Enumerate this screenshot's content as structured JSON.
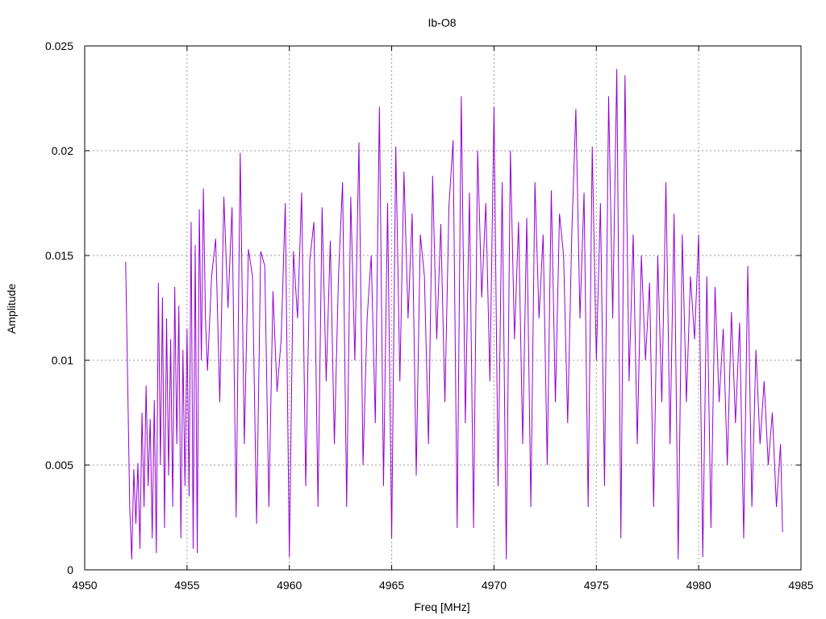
{
  "chart_data": {
    "type": "line",
    "title": "Ib-O8",
    "xlabel": "Freq [MHz]",
    "ylabel": "Amplitude",
    "xlim": [
      4950,
      4985
    ],
    "ylim": [
      0,
      0.025
    ],
    "xticks": [
      4950,
      4955,
      4960,
      4965,
      4970,
      4975,
      4980,
      4985
    ],
    "xtick_labels": [
      "4950",
      "4955",
      "4960",
      "4965",
      "4970",
      "4975",
      "4980",
      "4985"
    ],
    "yticks": [
      0,
      0.005,
      0.01,
      0.015,
      0.02,
      0.025
    ],
    "ytick_labels": [
      "0",
      "0.005",
      "0.01",
      "0.015",
      "0.02",
      "0.025"
    ],
    "grid": true,
    "series": [
      {
        "color": "#9400d3",
        "x": [
          4952.0,
          4952.1,
          4952.2,
          4952.3,
          4952.4,
          4952.5,
          4952.6,
          4952.7,
          4952.8,
          4952.9,
          4953.0,
          4953.1,
          4953.2,
          4953.3,
          4953.4,
          4953.5,
          4953.6,
          4953.7,
          4953.8,
          4953.9,
          4954.0,
          4954.1,
          4954.2,
          4954.3,
          4954.4,
          4954.5,
          4954.6,
          4954.7,
          4954.8,
          4954.9,
          4955.0,
          4955.1,
          4955.2,
          4955.3,
          4955.4,
          4955.5,
          4955.6,
          4955.7,
          4955.8,
          4955.9,
          4956.0,
          4956.2,
          4956.4,
          4956.6,
          4956.8,
          4957.0,
          4957.2,
          4957.4,
          4957.6,
          4957.8,
          4958.0,
          4958.2,
          4958.4,
          4958.6,
          4958.8,
          4959.0,
          4959.2,
          4959.4,
          4959.6,
          4959.8,
          4960.0,
          4960.2,
          4960.4,
          4960.6,
          4960.8,
          4961.0,
          4961.2,
          4961.4,
          4961.6,
          4961.8,
          4962.0,
          4962.2,
          4962.4,
          4962.6,
          4962.8,
          4963.0,
          4963.2,
          4963.4,
          4963.6,
          4963.8,
          4964.0,
          4964.2,
          4964.4,
          4964.6,
          4964.8,
          4965.0,
          4965.2,
          4965.4,
          4965.6,
          4965.8,
          4966.0,
          4966.2,
          4966.4,
          4966.6,
          4966.8,
          4967.0,
          4967.2,
          4967.4,
          4967.6,
          4967.8,
          4968.0,
          4968.2,
          4968.4,
          4968.6,
          4968.8,
          4969.0,
          4969.2,
          4969.4,
          4969.6,
          4969.8,
          4970.0,
          4970.2,
          4970.4,
          4970.6,
          4970.8,
          4971.0,
          4971.2,
          4971.4,
          4971.6,
          4971.8,
          4972.0,
          4972.2,
          4972.4,
          4972.6,
          4972.8,
          4973.0,
          4973.2,
          4973.4,
          4973.6,
          4973.8,
          4974.0,
          4974.2,
          4974.4,
          4974.6,
          4974.8,
          4975.0,
          4975.2,
          4975.4,
          4975.6,
          4975.8,
          4976.0,
          4976.2,
          4976.4,
          4976.6,
          4976.8,
          4977.0,
          4977.2,
          4977.4,
          4977.6,
          4977.8,
          4978.0,
          4978.2,
          4978.4,
          4978.6,
          4978.8,
          4979.0,
          4979.2,
          4979.4,
          4979.6,
          4979.8,
          4980.0,
          4980.2,
          4980.4,
          4980.6,
          4980.8,
          4981.0,
          4981.2,
          4981.4,
          4981.6,
          4981.8,
          4982.0,
          4982.2,
          4982.4,
          4982.6,
          4982.8,
          4983.0,
          4983.2,
          4983.4,
          4983.6,
          4983.8,
          4984.0,
          4984.1
        ],
        "y": [
          0.0147,
          0.009,
          0.003,
          0.0005,
          0.0048,
          0.0022,
          0.0051,
          0.001,
          0.0075,
          0.003,
          0.0088,
          0.004,
          0.0072,
          0.0015,
          0.0081,
          0.0008,
          0.0137,
          0.005,
          0.013,
          0.002,
          0.012,
          0.0045,
          0.011,
          0.003,
          0.0135,
          0.006,
          0.0126,
          0.0015,
          0.0105,
          0.004,
          0.0115,
          0.0035,
          0.0166,
          0.001,
          0.0155,
          0.0008,
          0.0172,
          0.01,
          0.0182,
          0.012,
          0.0095,
          0.014,
          0.0158,
          0.008,
          0.0178,
          0.0125,
          0.0173,
          0.0025,
          0.0199,
          0.006,
          0.0153,
          0.014,
          0.0022,
          0.0152,
          0.0145,
          0.003,
          0.0133,
          0.0085,
          0.011,
          0.0175,
          0.0006,
          0.0152,
          0.012,
          0.018,
          0.004,
          0.0148,
          0.0166,
          0.003,
          0.0173,
          0.009,
          0.0157,
          0.006,
          0.014,
          0.0185,
          0.003,
          0.0178,
          0.01,
          0.0204,
          0.005,
          0.012,
          0.015,
          0.007,
          0.0221,
          0.004,
          0.0175,
          0.0015,
          0.0202,
          0.009,
          0.019,
          0.012,
          0.017,
          0.0045,
          0.016,
          0.014,
          0.006,
          0.0188,
          0.011,
          0.0165,
          0.008,
          0.0174,
          0.0205,
          0.002,
          0.0226,
          0.007,
          0.018,
          0.002,
          0.02,
          0.013,
          0.0175,
          0.009,
          0.0221,
          0.004,
          0.0185,
          0.0005,
          0.02,
          0.011,
          0.0166,
          0.006,
          0.0168,
          0.003,
          0.0185,
          0.012,
          0.016,
          0.005,
          0.0181,
          0.008,
          0.017,
          0.015,
          0.007,
          0.016,
          0.022,
          0.012,
          0.018,
          0.003,
          0.0202,
          0.01,
          0.0175,
          0.004,
          0.0226,
          0.012,
          0.0239,
          0.0015,
          0.0236,
          0.009,
          0.016,
          0.006,
          0.015,
          0.01,
          0.0137,
          0.003,
          0.015,
          0.008,
          0.0185,
          0.006,
          0.017,
          0.0005,
          0.016,
          0.008,
          0.014,
          0.011,
          0.016,
          0.0006,
          0.014,
          0.002,
          0.0135,
          0.008,
          0.0115,
          0.005,
          0.0123,
          0.007,
          0.0118,
          0.0015,
          0.0145,
          0.003,
          0.0105,
          0.006,
          0.009,
          0.005,
          0.0075,
          0.003,
          0.006,
          0.0018
        ]
      }
    ]
  }
}
